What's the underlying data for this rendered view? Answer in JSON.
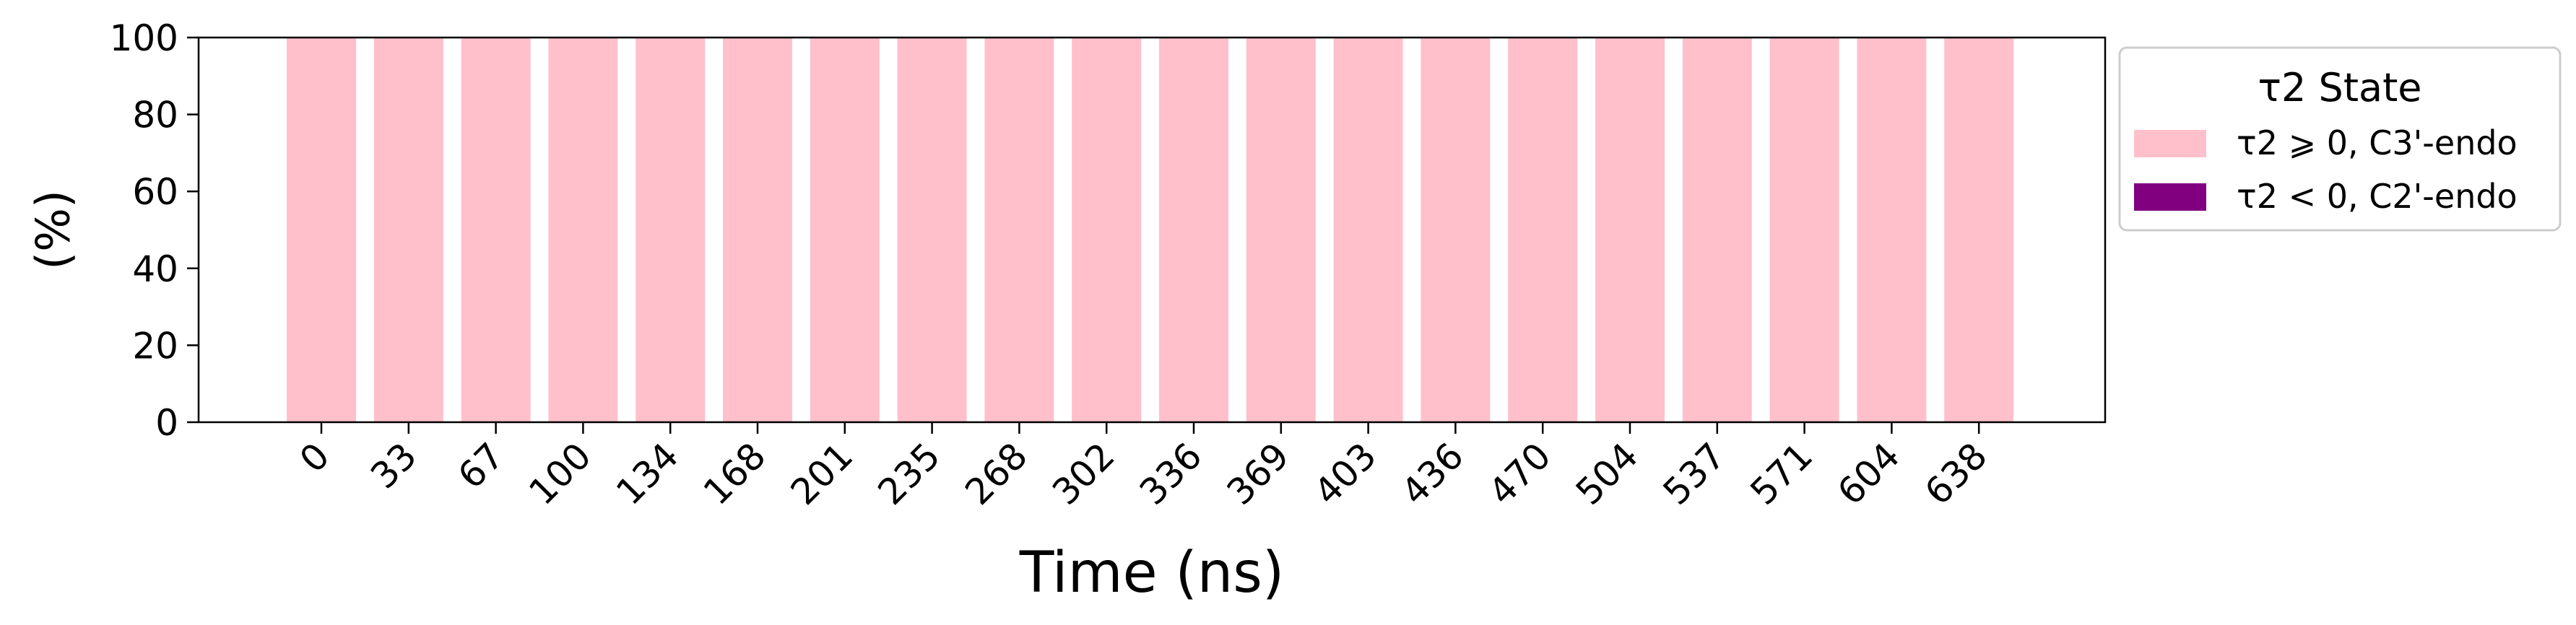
{
  "chart_data": {
    "type": "bar",
    "stacked": true,
    "categories": [
      "0",
      "33",
      "67",
      "100",
      "134",
      "168",
      "201",
      "235",
      "268",
      "302",
      "336",
      "369",
      "403",
      "436",
      "470",
      "504",
      "537",
      "571",
      "604",
      "638"
    ],
    "series": [
      {
        "name": "τ2 ⩾ 0, C3'-endo",
        "color": "#ffc0cb",
        "values": [
          100,
          100,
          100,
          100,
          100,
          100,
          100,
          100,
          100,
          100,
          100,
          100,
          100,
          100,
          100,
          100,
          100,
          100,
          100,
          100
        ]
      },
      {
        "name": "τ2 < 0, C2'-endo",
        "color": "#800080",
        "values": [
          0,
          0,
          0,
          0,
          0,
          0,
          0,
          0,
          0,
          0,
          0,
          0,
          0,
          0,
          0,
          0,
          0,
          0,
          0,
          0
        ]
      }
    ],
    "xlabel": "Time (ns)",
    "ylabel": "(%)",
    "ylim": [
      0,
      100
    ],
    "yticks": [
      0,
      20,
      40,
      60,
      80,
      100
    ],
    "grid": false,
    "legend": {
      "title": "τ2 State",
      "placement": "outside-right"
    }
  }
}
